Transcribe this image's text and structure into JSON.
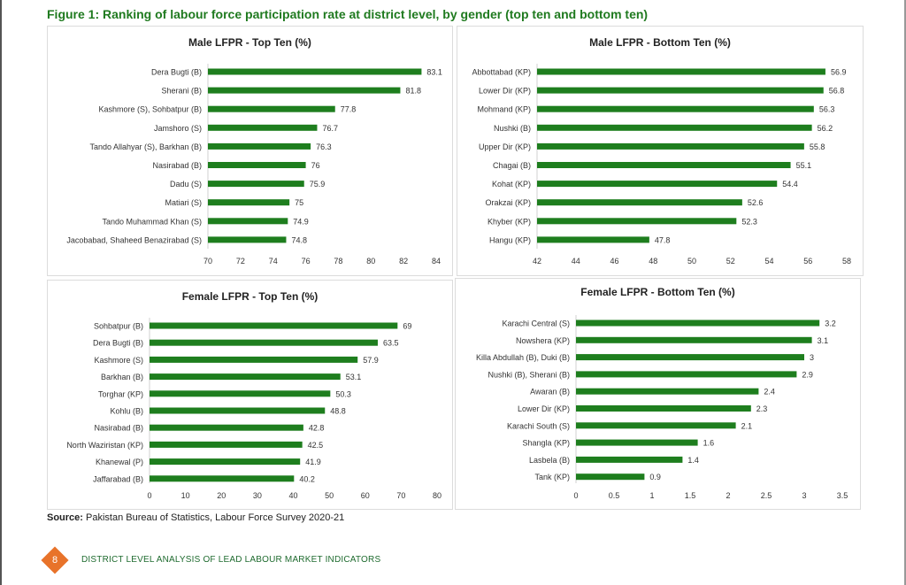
{
  "figure_title": "Figure 1: Ranking of labour force participation rate at district level, by gender (top ten and bottom ten)",
  "source_label": "Source:",
  "source_text": " Pakistan Bureau of Statistics, Labour Force Survey 2020-21",
  "footer": {
    "page_number": "8",
    "text": "DISTRICT LEVEL ANALYSIS OF LEAD LABOUR MARKET INDICATORS"
  },
  "colors": {
    "bar": "#1e7e1e",
    "title": "#1f7a1f",
    "axis": "#cfcfcf",
    "badge": "#e8732a"
  },
  "chart_data": [
    {
      "type": "bar",
      "orientation": "horizontal",
      "title": "Male LFPR - Top Ten (%)",
      "categories": [
        "Dera Bugti (B)",
        "Sherani (B)",
        "Kashmore (S), Sohbatpur (B)",
        "Jamshoro (S)",
        "Tando Allahyar (S), Barkhan (B)",
        "Nasirabad (B)",
        "Dadu (S)",
        "Matiari (S)",
        "Tando Muhammad Khan (S)",
        "Jacobabad, Shaheed Benazirabad (S)"
      ],
      "values": [
        83.1,
        81.8,
        77.8,
        76.7,
        76.3,
        76,
        75.9,
        75,
        74.9,
        74.8
      ],
      "value_labels": [
        "83.1",
        "81.8",
        "77.8",
        "76.7",
        "76.3",
        "76",
        "75.9",
        "75",
        "74.9",
        "74.8"
      ],
      "xlim": [
        70,
        84
      ],
      "ticks": [
        70,
        72,
        74,
        76,
        78,
        80,
        82,
        84
      ],
      "tick_labels": [
        "70",
        "72",
        "74",
        "76",
        "78",
        "80",
        "82",
        "84"
      ],
      "grid": false
    },
    {
      "type": "bar",
      "orientation": "horizontal",
      "title": "Male LFPR - Bottom Ten (%)",
      "categories": [
        "Abbottabad (KP)",
        "Lower Dir (KP)",
        "Mohmand (KP)",
        "Nushki (B)",
        "Upper Dir (KP)",
        "Chagai (B)",
        "Kohat (KP)",
        "Orakzai (KP)",
        "Khyber (KP)",
        "Hangu (KP)"
      ],
      "values": [
        56.9,
        56.8,
        56.3,
        56.2,
        55.8,
        55.1,
        54.4,
        52.6,
        52.3,
        47.8
      ],
      "value_labels": [
        "56.9",
        "56.8",
        "56.3",
        "56.2",
        "55.8",
        "55.1",
        "54.4",
        "52.6",
        "52.3",
        "47.8"
      ],
      "xlim": [
        42,
        58
      ],
      "ticks": [
        42,
        44,
        46,
        48,
        50,
        52,
        54,
        56,
        58
      ],
      "tick_labels": [
        "42",
        "44",
        "46",
        "48",
        "50",
        "52",
        "54",
        "56",
        "58"
      ],
      "grid": false
    },
    {
      "type": "bar",
      "orientation": "horizontal",
      "title": "Female LFPR - Top Ten (%)",
      "categories": [
        "Sohbatpur (B)",
        "Dera Bugti (B)",
        "Kashmore (S)",
        "Barkhan (B)",
        "Torghar (KP)",
        "Kohlu (B)",
        "Nasirabad (B)",
        "North Waziristan (KP)",
        "Khanewal (P)",
        "Jaffarabad (B)"
      ],
      "values": [
        69,
        63.5,
        57.9,
        53.1,
        50.3,
        48.8,
        42.8,
        42.5,
        41.9,
        40.2
      ],
      "value_labels": [
        "69",
        "63.5",
        "57.9",
        "53.1",
        "50.3",
        "48.8",
        "42.8",
        "42.5",
        "41.9",
        "40.2"
      ],
      "xlim": [
        0,
        80
      ],
      "ticks": [
        0,
        10,
        20,
        30,
        40,
        50,
        60,
        70,
        80
      ],
      "tick_labels": [
        "0",
        "10",
        "20",
        "30",
        "40",
        "50",
        "60",
        "70",
        "80"
      ],
      "grid": false
    },
    {
      "type": "bar",
      "orientation": "horizontal",
      "title": "Female LFPR - Bottom Ten (%)",
      "categories": [
        "Karachi Central (S)",
        "Nowshera (KP)",
        "Killa Abdullah (B), Duki (B)",
        "Nushki (B), Sherani (B)",
        "Awaran (B)",
        "Lower Dir (KP)",
        "Karachi South (S)",
        "Shangla (KP)",
        "Lasbela (B)",
        "Tank (KP)"
      ],
      "values": [
        3.2,
        3.1,
        3,
        2.9,
        2.4,
        2.3,
        2.1,
        1.6,
        1.4,
        0.9
      ],
      "value_labels": [
        "3.2",
        "3.1",
        "3",
        "2.9",
        "2.4",
        "2.3",
        "2.1",
        "1.6",
        "1.4",
        "0.9"
      ],
      "xlim": [
        0,
        3.5
      ],
      "ticks": [
        0,
        0.5,
        1,
        1.5,
        2,
        2.5,
        3,
        3.5
      ],
      "tick_labels": [
        "0",
        "0.5",
        "1",
        "1.5",
        "2",
        "2.5",
        "3",
        "3.5"
      ],
      "grid": false
    }
  ]
}
